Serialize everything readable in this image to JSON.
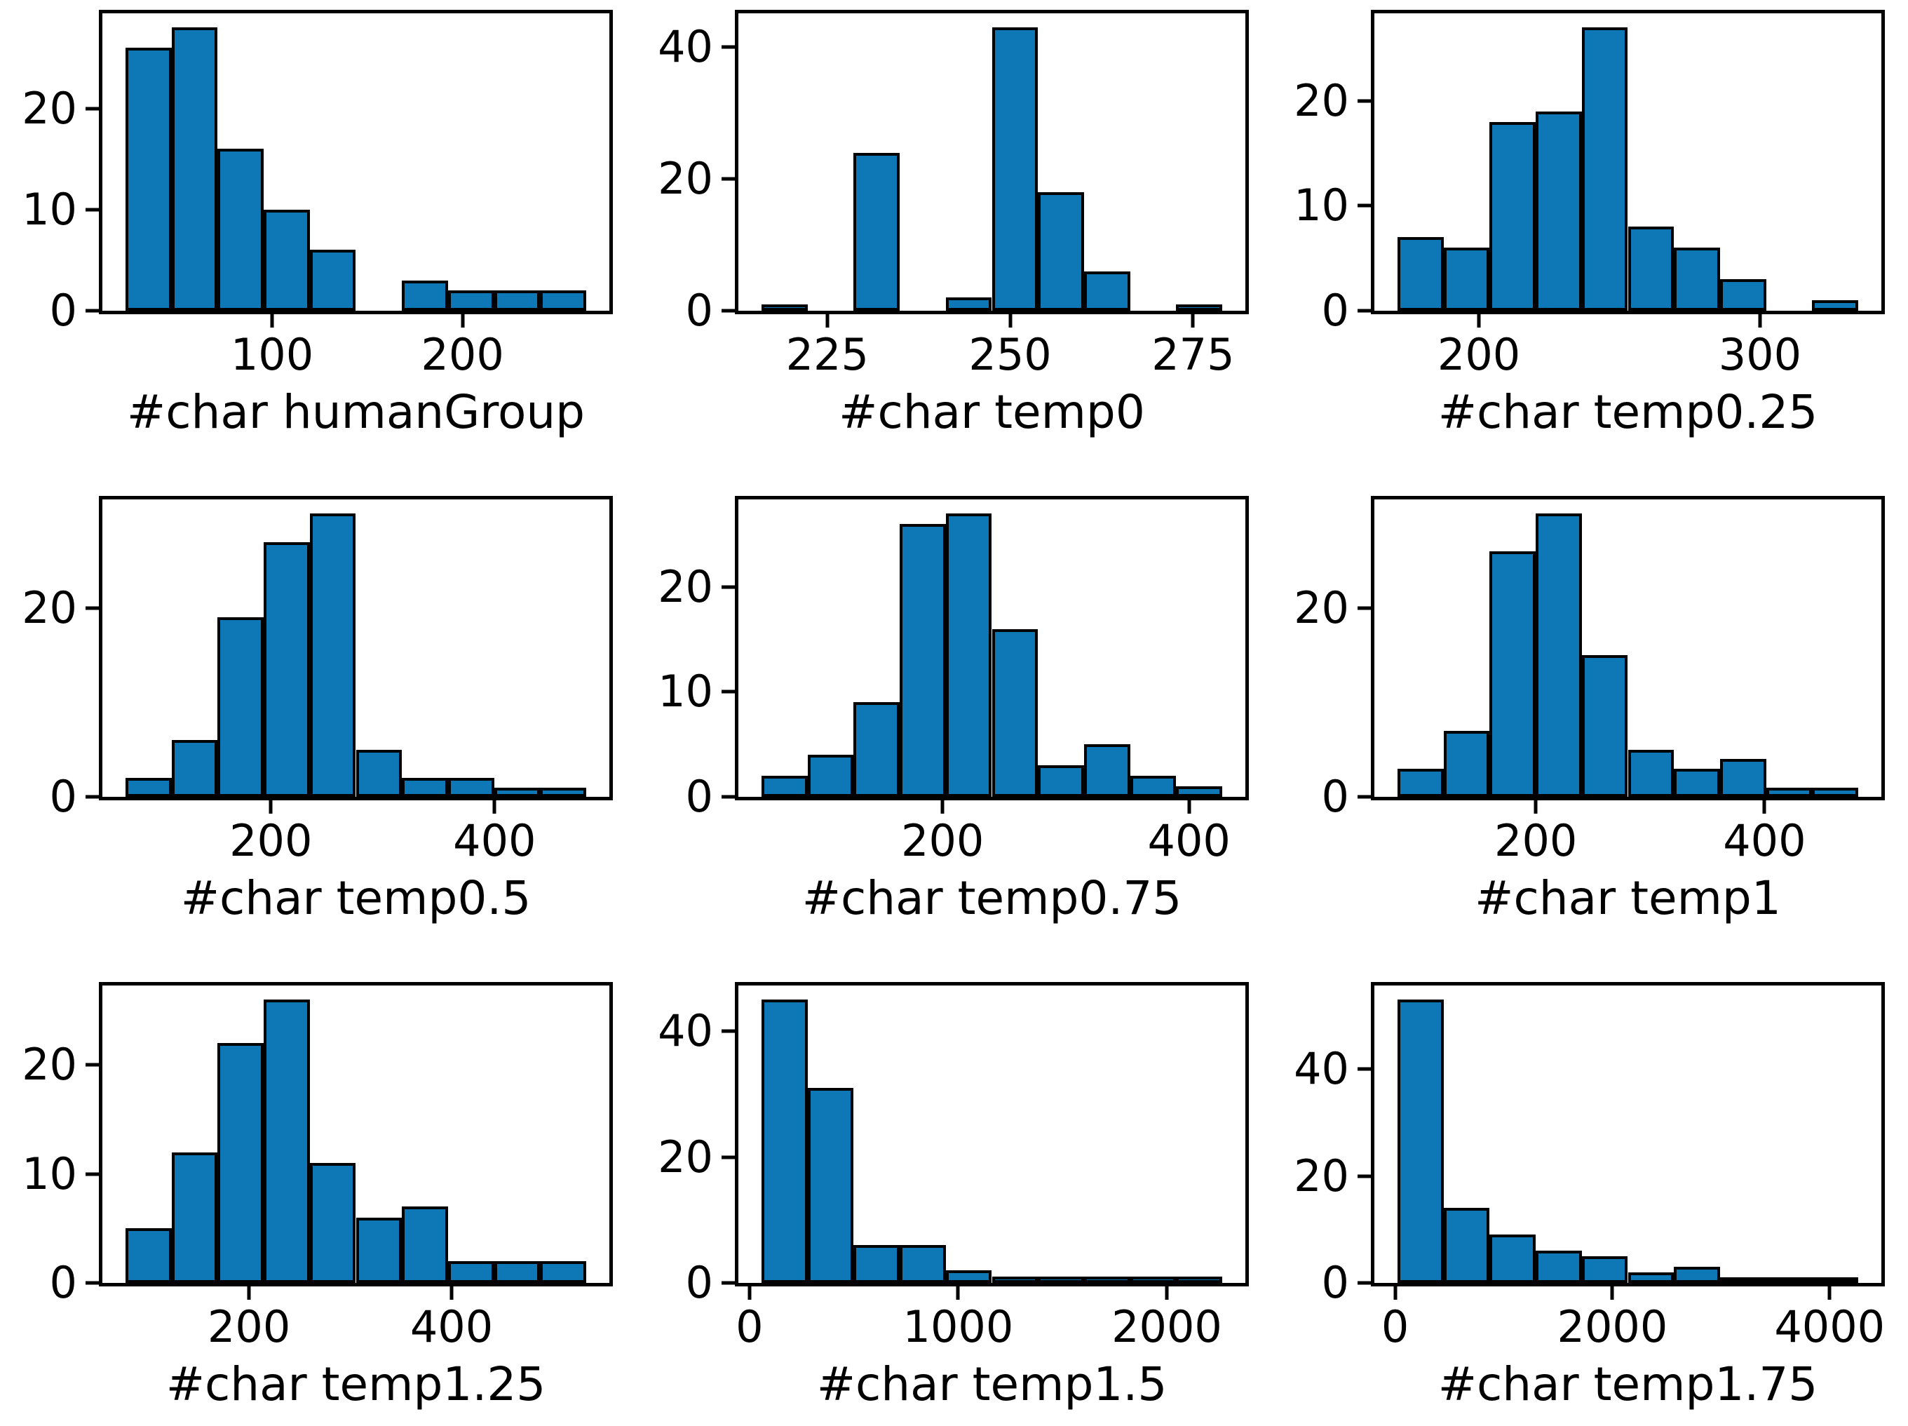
{
  "figure": {
    "background": "#ffffff",
    "bar_color": "#0e77b5",
    "bar_edge_color": "#000000",
    "rows": 3,
    "cols": 3
  },
  "chart_data": [
    {
      "type": "bar",
      "subtype": "histogram",
      "xlabel": "#char humanGroup",
      "bin_start": 23,
      "bin_end": 265,
      "counts": [
        26,
        28,
        16,
        10,
        6,
        0,
        3,
        2,
        2,
        2
      ],
      "x_ticks": [
        100,
        200
      ],
      "y_ticks": [
        0,
        10,
        20
      ],
      "total": 95,
      "grid": false,
      "legend": false
    },
    {
      "type": "bar",
      "subtype": "histogram",
      "xlabel": "#char temp0",
      "bin_start": 216,
      "bin_end": 279,
      "counts": [
        1,
        0,
        24,
        0,
        2,
        43,
        18,
        6,
        0,
        1
      ],
      "x_ticks": [
        225,
        250,
        275
      ],
      "y_ticks": [
        0,
        20,
        40
      ],
      "total": 95,
      "grid": false,
      "legend": false
    },
    {
      "type": "bar",
      "subtype": "histogram",
      "xlabel": "#char temp0.25",
      "bin_start": 171,
      "bin_end": 335,
      "counts": [
        7,
        6,
        18,
        19,
        27,
        8,
        6,
        3,
        0,
        1
      ],
      "x_ticks": [
        200,
        300
      ],
      "y_ticks": [
        0,
        10,
        20
      ],
      "total": 95,
      "grid": false,
      "legend": false
    },
    {
      "type": "bar",
      "subtype": "histogram",
      "xlabel": "#char temp0.5",
      "bin_start": 70,
      "bin_end": 482,
      "counts": [
        2,
        6,
        19,
        27,
        30,
        5,
        2,
        2,
        1,
        1
      ],
      "x_ticks": [
        200,
        400
      ],
      "y_ticks": [
        0,
        20
      ],
      "total": 95,
      "grid": false,
      "legend": false
    },
    {
      "type": "bar",
      "subtype": "histogram",
      "xlabel": "#char temp0.75",
      "bin_start": 53,
      "bin_end": 427,
      "counts": [
        2,
        4,
        9,
        26,
        27,
        16,
        3,
        5,
        2,
        1
      ],
      "x_ticks": [
        200,
        400
      ],
      "y_ticks": [
        0,
        10,
        20
      ],
      "total": 95,
      "grid": false,
      "legend": false
    },
    {
      "type": "bar",
      "subtype": "histogram",
      "xlabel": "#char temp1",
      "bin_start": 79,
      "bin_end": 482,
      "counts": [
        3,
        7,
        26,
        30,
        15,
        5,
        3,
        4,
        1,
        1
      ],
      "x_ticks": [
        200,
        400
      ],
      "y_ticks": [
        0,
        20
      ],
      "total": 95,
      "grid": false,
      "legend": false
    },
    {
      "type": "bar",
      "subtype": "histogram",
      "xlabel": "#char temp1.25",
      "bin_start": 78,
      "bin_end": 533,
      "counts": [
        5,
        12,
        22,
        26,
        11,
        6,
        7,
        2,
        2,
        2
      ],
      "x_ticks": [
        200,
        400
      ],
      "y_ticks": [
        0,
        10,
        20
      ],
      "total": 95,
      "grid": false,
      "legend": false
    },
    {
      "type": "bar",
      "subtype": "histogram",
      "xlabel": "#char temp1.5",
      "bin_start": 57,
      "bin_end": 2266,
      "counts": [
        45,
        31,
        6,
        6,
        2,
        1,
        1,
        1,
        1,
        1
      ],
      "x_ticks": [
        0,
        1000,
        2000
      ],
      "y_ticks": [
        0,
        20,
        40
      ],
      "total": 95,
      "grid": false,
      "legend": false
    },
    {
      "type": "bar",
      "subtype": "histogram",
      "xlabel": "#char temp1.75",
      "bin_start": 21,
      "bin_end": 4264,
      "counts": [
        53,
        14,
        9,
        6,
        5,
        2,
        3,
        1,
        1,
        1
      ],
      "x_ticks": [
        0,
        2000,
        4000
      ],
      "y_ticks": [
        0,
        20,
        40
      ],
      "total": 95,
      "grid": false,
      "legend": false
    }
  ]
}
